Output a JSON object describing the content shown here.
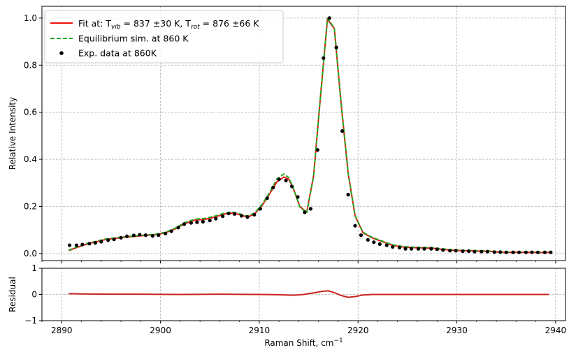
{
  "chart_data": [
    {
      "panel": "main",
      "type": "line",
      "ylabel": "Relative Intensity",
      "xlim": [
        2888,
        2941
      ],
      "ylim": [
        -0.03,
        1.05
      ],
      "x_ticks": [
        2890,
        2900,
        2910,
        2920,
        2930,
        2940
      ],
      "y_ticks": [
        0.0,
        0.2,
        0.4,
        0.6,
        0.8,
        1.0
      ],
      "y_tick_labels": [
        "0.0",
        "0.2",
        "0.4",
        "0.6",
        "0.8",
        "1.0"
      ],
      "grid": true,
      "legend_position": "top-left",
      "legend": [
        {
          "pre": "Fit at: T",
          "sub1": "vib",
          "mid": " = 837 ±30 K, T",
          "sub2": "rot",
          "post": " = 876 ±66 K",
          "color": "#ee1111",
          "style": "solid"
        },
        {
          "text": "Equilibrium sim. at 860 K",
          "color": "#22aa22",
          "style": "dashed"
        },
        {
          "text": "Exp. data at 860K",
          "color": "#000000",
          "style": "marker"
        }
      ],
      "series": [
        {
          "name": "Fit",
          "kind": "line",
          "color": "#ee1111",
          "points": [
            [
              2890.7,
              0.012
            ],
            [
              2891.5,
              0.025
            ],
            [
              2892.5,
              0.04
            ],
            [
              2893.5,
              0.05
            ],
            [
              2894.5,
              0.06
            ],
            [
              2895.5,
              0.065
            ],
            [
              2896.5,
              0.07
            ],
            [
              2897.5,
              0.073
            ],
            [
              2898.5,
              0.077
            ],
            [
              2899.5,
              0.08
            ],
            [
              2900.5,
              0.088
            ],
            [
              2901.5,
              0.105
            ],
            [
              2902.5,
              0.128
            ],
            [
              2903.5,
              0.142
            ],
            [
              2904.5,
              0.145
            ],
            [
              2905.5,
              0.155
            ],
            [
              2906.5,
              0.168
            ],
            [
              2907.3,
              0.172
            ],
            [
              2908.0,
              0.165
            ],
            [
              2908.8,
              0.155
            ],
            [
              2909.5,
              0.167
            ],
            [
              2910.3,
              0.205
            ],
            [
              2911.0,
              0.25
            ],
            [
              2911.8,
              0.305
            ],
            [
              2912.5,
              0.325
            ],
            [
              2913.0,
              0.315
            ],
            [
              2913.5,
              0.27
            ],
            [
              2914.1,
              0.2
            ],
            [
              2914.8,
              0.175
            ],
            [
              2915.5,
              0.33
            ],
            [
              2916.1,
              0.62
            ],
            [
              2916.9,
              0.995
            ],
            [
              2917.6,
              0.955
            ],
            [
              2918.3,
              0.63
            ],
            [
              2919.0,
              0.34
            ],
            [
              2919.7,
              0.16
            ],
            [
              2920.5,
              0.088
            ],
            [
              2921.5,
              0.065
            ],
            [
              2922.5,
              0.05
            ],
            [
              2923.5,
              0.035
            ],
            [
              2924.5,
              0.028
            ],
            [
              2925.5,
              0.025
            ],
            [
              2926.5,
              0.024
            ],
            [
              2927.5,
              0.023
            ],
            [
              2928.5,
              0.018
            ],
            [
              2929.5,
              0.014
            ],
            [
              2930.5,
              0.012
            ],
            [
              2931.5,
              0.011
            ],
            [
              2932.5,
              0.01
            ],
            [
              2933.5,
              0.009
            ],
            [
              2934.5,
              0.005
            ],
            [
              2935.5,
              0.005
            ],
            [
              2936.5,
              0.005
            ],
            [
              2937.5,
              0.005
            ],
            [
              2938.5,
              0.004
            ],
            [
              2939.3,
              0.004
            ]
          ]
        },
        {
          "name": "Equilibrium sim.",
          "kind": "dashed",
          "color": "#22aa22",
          "points": [
            [
              2890.7,
              0.014
            ],
            [
              2891.5,
              0.027
            ],
            [
              2892.5,
              0.042
            ],
            [
              2893.5,
              0.052
            ],
            [
              2894.5,
              0.062
            ],
            [
              2895.5,
              0.067
            ],
            [
              2896.5,
              0.072
            ],
            [
              2897.5,
              0.075
            ],
            [
              2898.5,
              0.079
            ],
            [
              2899.5,
              0.082
            ],
            [
              2900.5,
              0.09
            ],
            [
              2901.5,
              0.108
            ],
            [
              2902.5,
              0.132
            ],
            [
              2903.5,
              0.146
            ],
            [
              2904.5,
              0.149
            ],
            [
              2905.5,
              0.159
            ],
            [
              2906.5,
              0.172
            ],
            [
              2907.3,
              0.176
            ],
            [
              2908.0,
              0.169
            ],
            [
              2908.8,
              0.159
            ],
            [
              2909.5,
              0.171
            ],
            [
              2910.3,
              0.21
            ],
            [
              2911.0,
              0.256
            ],
            [
              2911.8,
              0.318
            ],
            [
              2912.5,
              0.338
            ],
            [
              2913.0,
              0.322
            ],
            [
              2913.5,
              0.272
            ],
            [
              2914.1,
              0.198
            ],
            [
              2914.8,
              0.172
            ],
            [
              2915.5,
              0.328
            ],
            [
              2916.1,
              0.62
            ],
            [
              2916.9,
              0.998
            ],
            [
              2917.6,
              0.958
            ],
            [
              2918.3,
              0.632
            ],
            [
              2919.0,
              0.342
            ],
            [
              2919.7,
              0.162
            ],
            [
              2920.5,
              0.09
            ],
            [
              2921.5,
              0.067
            ],
            [
              2922.5,
              0.052
            ],
            [
              2923.5,
              0.037
            ],
            [
              2924.5,
              0.03
            ],
            [
              2925.5,
              0.027
            ],
            [
              2926.5,
              0.026
            ],
            [
              2927.5,
              0.025
            ],
            [
              2928.5,
              0.02
            ],
            [
              2929.5,
              0.016
            ],
            [
              2930.5,
              0.014
            ],
            [
              2931.5,
              0.013
            ],
            [
              2932.5,
              0.012
            ],
            [
              2933.5,
              0.01
            ],
            [
              2934.5,
              0.006
            ],
            [
              2935.5,
              0.006
            ],
            [
              2936.5,
              0.006
            ],
            [
              2937.5,
              0.006
            ],
            [
              2938.5,
              0.005
            ],
            [
              2939.3,
              0.005
            ]
          ]
        },
        {
          "name": "Exp. data",
          "kind": "scatter",
          "color": "#000000",
          "points": [
            [
              2890.8,
              0.035
            ],
            [
              2891.5,
              0.035
            ],
            [
              2892.1,
              0.038
            ],
            [
              2892.8,
              0.042
            ],
            [
              2893.4,
              0.045
            ],
            [
              2894.0,
              0.05
            ],
            [
              2894.7,
              0.057
            ],
            [
              2895.3,
              0.06
            ],
            [
              2896.0,
              0.067
            ],
            [
              2896.6,
              0.073
            ],
            [
              2897.3,
              0.077
            ],
            [
              2897.9,
              0.08
            ],
            [
              2898.5,
              0.078
            ],
            [
              2899.2,
              0.075
            ],
            [
              2899.8,
              0.078
            ],
            [
              2900.5,
              0.085
            ],
            [
              2901.1,
              0.095
            ],
            [
              2901.8,
              0.11
            ],
            [
              2902.4,
              0.125
            ],
            [
              2903.1,
              0.13
            ],
            [
              2903.7,
              0.133
            ],
            [
              2904.3,
              0.135
            ],
            [
              2905.0,
              0.14
            ],
            [
              2905.6,
              0.148
            ],
            [
              2906.3,
              0.158
            ],
            [
              2906.9,
              0.17
            ],
            [
              2907.5,
              0.168
            ],
            [
              2908.2,
              0.16
            ],
            [
              2908.8,
              0.155
            ],
            [
              2909.5,
              0.165
            ],
            [
              2910.1,
              0.19
            ],
            [
              2910.8,
              0.235
            ],
            [
              2911.4,
              0.28
            ],
            [
              2912.0,
              0.315
            ],
            [
              2912.7,
              0.31
            ],
            [
              2913.3,
              0.285
            ],
            [
              2913.9,
              0.24
            ],
            [
              2914.6,
              0.175
            ],
            [
              2915.2,
              0.19
            ],
            [
              2915.9,
              0.44
            ],
            [
              2916.5,
              0.83
            ],
            [
              2917.1,
              1.0
            ],
            [
              2917.8,
              0.875
            ],
            [
              2918.4,
              0.52
            ],
            [
              2919.0,
              0.25
            ],
            [
              2919.7,
              0.118
            ],
            [
              2920.3,
              0.078
            ],
            [
              2921.0,
              0.058
            ],
            [
              2921.6,
              0.048
            ],
            [
              2922.2,
              0.04
            ],
            [
              2922.9,
              0.035
            ],
            [
              2923.5,
              0.028
            ],
            [
              2924.2,
              0.025
            ],
            [
              2924.8,
              0.02
            ],
            [
              2925.4,
              0.02
            ],
            [
              2926.1,
              0.02
            ],
            [
              2926.7,
              0.02
            ],
            [
              2927.4,
              0.02
            ],
            [
              2928.0,
              0.018
            ],
            [
              2928.6,
              0.015
            ],
            [
              2929.3,
              0.012
            ],
            [
              2929.9,
              0.012
            ],
            [
              2930.6,
              0.01
            ],
            [
              2931.2,
              0.01
            ],
            [
              2931.8,
              0.008
            ],
            [
              2932.5,
              0.008
            ],
            [
              2933.1,
              0.008
            ],
            [
              2933.8,
              0.006
            ],
            [
              2934.4,
              0.006
            ],
            [
              2935.0,
              0.005
            ],
            [
              2935.7,
              0.005
            ],
            [
              2936.3,
              0.005
            ],
            [
              2937.0,
              0.005
            ],
            [
              2937.6,
              0.005
            ],
            [
              2938.2,
              0.005
            ],
            [
              2938.9,
              0.005
            ],
            [
              2939.5,
              0.005
            ]
          ]
        }
      ]
    },
    {
      "panel": "residual",
      "type": "line",
      "xlabel_pre": "Raman Shift, cm",
      "xlabel_sup": "−1",
      "ylabel": "Residual",
      "xlim": [
        2888,
        2941
      ],
      "ylim": [
        -1,
        1
      ],
      "x_ticks": [
        2890,
        2900,
        2910,
        2920,
        2930,
        2940
      ],
      "x_tick_labels": [
        "2890",
        "2900",
        "2910",
        "2920",
        "2930",
        "2940"
      ],
      "y_ticks": [
        -1,
        0,
        1
      ],
      "y_tick_labels": [
        "−1",
        "0",
        "1"
      ],
      "grid": true,
      "series": [
        {
          "name": "Residual",
          "kind": "line",
          "color": "#cc2222",
          "points": [
            [
              2890.7,
              0.03
            ],
            [
              2892,
              0.02
            ],
            [
              2895,
              0.01
            ],
            [
              2898,
              0.01
            ],
            [
              2902,
              0.0
            ],
            [
              2906,
              0.01
            ],
            [
              2910,
              0.0
            ],
            [
              2912,
              -0.01
            ],
            [
              2913.5,
              -0.03
            ],
            [
              2914.5,
              0.0
            ],
            [
              2915.5,
              0.06
            ],
            [
              2916.4,
              0.12
            ],
            [
              2917.0,
              0.14
            ],
            [
              2917.6,
              0.07
            ],
            [
              2918.3,
              -0.04
            ],
            [
              2919.0,
              -0.11
            ],
            [
              2919.7,
              -0.08
            ],
            [
              2920.5,
              -0.02
            ],
            [
              2921.5,
              0.0
            ],
            [
              2925,
              0.0
            ],
            [
              2930,
              0.0
            ],
            [
              2935,
              0.0
            ],
            [
              2939.3,
              0.0
            ]
          ]
        }
      ]
    }
  ]
}
